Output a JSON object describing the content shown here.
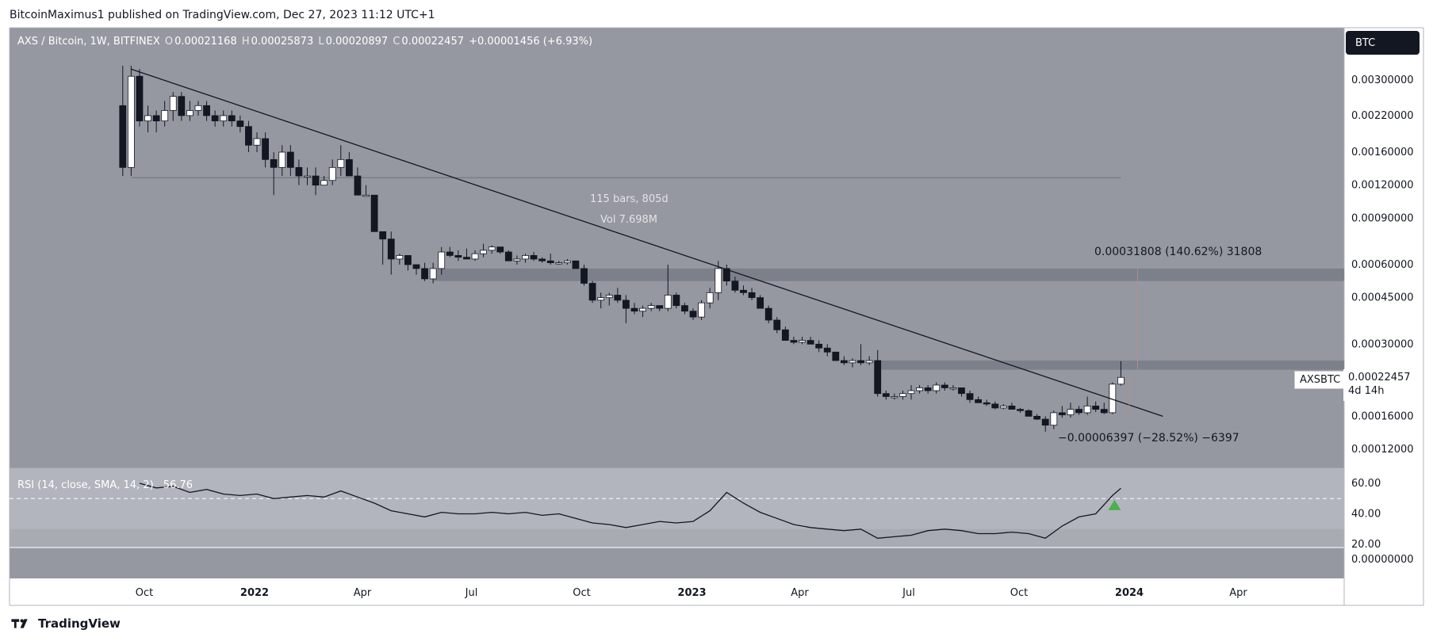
{
  "header": {
    "text": "BitcoinMaximus1 published on TradingView.com, Dec 27, 2023 11:12 UTC+1"
  },
  "footer": {
    "brand": "TradingView"
  },
  "symbol": {
    "name": "AXS / Bitcoin, 1W, BITFINEX",
    "open_label": "O",
    "open": "0.00021168",
    "high_label": "H",
    "high": "0.00025873",
    "low_label": "L",
    "low": "0.00020897",
    "close_label": "C",
    "close": "0.00022457",
    "change": "+0.00001456 (+6.93%)"
  },
  "currency_button": "BTC",
  "price_tag": {
    "symbol": "AXSBTC",
    "price": "0.00022457",
    "countdown": "4d 14h"
  },
  "annotations": {
    "measure_top": "0.00031808 (140.62%) 31808",
    "measure_bottom": "−0.00006397 (−28.52%) −6397",
    "bars": "115 bars, 805d",
    "vol": "Vol 7.698M"
  },
  "rsi": {
    "legend": "RSI (14, close, SMA, 14, 2)",
    "value": "56.76"
  },
  "colors": {
    "price_pane_bg": "#9598a1",
    "rsi_pane_bg": "#a9abb3",
    "rsi_band_bg": "#b2b5be",
    "candle_up": "#ffffff",
    "candle_down": "#131722",
    "trendline": "#131722",
    "zone": "#787b86",
    "arrow": "#4caf50"
  },
  "chart_data": {
    "type": "candlestick",
    "title": "AXS / Bitcoin, 1W, BITFINEX",
    "y_scale": "log",
    "y_ticks": [
      "0.00300000",
      "0.00220000",
      "0.00160000",
      "0.00120000",
      "0.00090000",
      "0.00060000",
      "0.00045000",
      "0.00030000",
      "0.00016000",
      "0.00012000"
    ],
    "y_ticks_values": [
      0.003,
      0.0022,
      0.0016,
      0.0012,
      0.0009,
      0.0006,
      0.00045,
      0.0003,
      0.00016,
      0.00012
    ],
    "x_ticks": [
      "Oct",
      "2022",
      "Apr",
      "Jul",
      "Oct",
      "2023",
      "Apr",
      "Jul",
      "Oct",
      "2024",
      "Apr"
    ],
    "x_ticks_bold": [
      false,
      true,
      false,
      false,
      false,
      true,
      false,
      false,
      false,
      true,
      false
    ],
    "rsi_ticks": [
      "60.00",
      "40.00",
      "20.00"
    ],
    "rsi_ticks_values": [
      60,
      40,
      20
    ],
    "extra_tick": "0.00000000",
    "current_price": 0.00022457,
    "resistance_zones": [
      [
        0.00052,
        0.00058
      ],
      [
        0.00024,
        0.00026
      ]
    ],
    "trendline": [
      [
        "2021-09-20",
        0.0033
      ],
      [
        "2024-01-29",
        0.00016
      ]
    ],
    "candles": [
      [
        "2021-09-13",
        0.0024,
        0.0034,
        0.0013,
        0.0014
      ],
      [
        "2021-09-20",
        0.0014,
        0.0034,
        0.0013,
        0.0031
      ],
      [
        "2021-09-27",
        0.0031,
        0.0033,
        0.002,
        0.0021
      ],
      [
        "2021-10-04",
        0.0021,
        0.0024,
        0.0019,
        0.0022
      ],
      [
        "2021-10-11",
        0.0022,
        0.0023,
        0.0019,
        0.0021
      ],
      [
        "2021-10-18",
        0.0021,
        0.0025,
        0.002,
        0.0023
      ],
      [
        "2021-10-25",
        0.0023,
        0.0027,
        0.0021,
        0.0026
      ],
      [
        "2021-11-01",
        0.0026,
        0.0027,
        0.0021,
        0.0022
      ],
      [
        "2021-11-08",
        0.0022,
        0.0025,
        0.0021,
        0.0023
      ],
      [
        "2021-11-15",
        0.0023,
        0.0025,
        0.0022,
        0.0024
      ],
      [
        "2021-11-22",
        0.0024,
        0.0025,
        0.0021,
        0.0022
      ],
      [
        "2021-11-29",
        0.0022,
        0.0023,
        0.002,
        0.0021
      ],
      [
        "2021-12-06",
        0.0021,
        0.0023,
        0.002,
        0.0022
      ],
      [
        "2021-12-13",
        0.0022,
        0.0023,
        0.002,
        0.0021
      ],
      [
        "2021-12-20",
        0.0021,
        0.0022,
        0.0019,
        0.002
      ],
      [
        "2021-12-27",
        0.002,
        0.0021,
        0.0016,
        0.0017
      ],
      [
        "2022-01-03",
        0.0017,
        0.0019,
        0.0016,
        0.0018
      ],
      [
        "2022-01-10",
        0.0018,
        0.0019,
        0.0014,
        0.0015
      ],
      [
        "2022-01-17",
        0.0015,
        0.0016,
        0.0011,
        0.0014
      ],
      [
        "2022-01-24",
        0.0014,
        0.0017,
        0.0013,
        0.0016
      ],
      [
        "2022-01-31",
        0.0016,
        0.0017,
        0.0013,
        0.0014
      ],
      [
        "2022-02-07",
        0.0014,
        0.0015,
        0.0012,
        0.0013
      ],
      [
        "2022-02-14",
        0.0013,
        0.0014,
        0.0012,
        0.0013
      ],
      [
        "2022-02-21",
        0.0013,
        0.0014,
        0.0011,
        0.0012
      ],
      [
        "2022-02-28",
        0.0012,
        0.0013,
        0.0012,
        0.00125
      ],
      [
        "2022-03-07",
        0.00125,
        0.0015,
        0.0012,
        0.0014
      ],
      [
        "2022-03-14",
        0.0014,
        0.0017,
        0.0013,
        0.0015
      ],
      [
        "2022-03-21",
        0.0015,
        0.0016,
        0.0013,
        0.0013
      ],
      [
        "2022-03-28",
        0.0013,
        0.0014,
        0.0011,
        0.0011
      ],
      [
        "2022-04-04",
        0.0011,
        0.0012,
        0.0011,
        0.0011
      ],
      [
        "2022-04-11",
        0.0011,
        0.0011,
        0.0008,
        0.0008
      ],
      [
        "2022-04-18",
        0.0008,
        0.0008,
        0.0006,
        0.00075
      ],
      [
        "2022-04-25",
        0.00075,
        0.0008,
        0.00055,
        0.00063
      ],
      [
        "2022-05-02",
        0.00063,
        0.00066,
        0.0006,
        0.00065
      ],
      [
        "2022-05-09",
        0.00065,
        0.00065,
        0.00057,
        0.0006
      ],
      [
        "2022-05-16",
        0.0006,
        0.0006,
        0.00055,
        0.00058
      ],
      [
        "2022-05-23",
        0.00058,
        0.00061,
        0.00052,
        0.00053
      ],
      [
        "2022-05-30",
        0.00053,
        0.00061,
        0.00051,
        0.00058
      ],
      [
        "2022-06-06",
        0.00058,
        0.0007,
        0.00055,
        0.00067
      ],
      [
        "2022-06-13",
        0.00067,
        0.0007,
        0.00064,
        0.00065
      ],
      [
        "2022-06-20",
        0.00065,
        0.00068,
        0.00062,
        0.00064
      ],
      [
        "2022-06-27",
        0.00064,
        0.00069,
        0.00063,
        0.00063
      ],
      [
        "2022-07-04",
        0.00063,
        0.00068,
        0.00062,
        0.00066
      ],
      [
        "2022-07-11",
        0.00066,
        0.00072,
        0.00064,
        0.00068
      ],
      [
        "2022-07-18",
        0.00068,
        0.00071,
        0.00066,
        0.0007
      ],
      [
        "2022-07-25",
        0.0007,
        0.0007,
        0.00066,
        0.00067
      ],
      [
        "2022-08-01",
        0.00067,
        0.00068,
        0.00062,
        0.00062
      ],
      [
        "2022-08-08",
        0.00062,
        0.00065,
        0.0006,
        0.00063
      ],
      [
        "2022-08-15",
        0.00063,
        0.00066,
        0.00061,
        0.00065
      ],
      [
        "2022-08-22",
        0.00065,
        0.00067,
        0.00062,
        0.00063
      ],
      [
        "2022-08-29",
        0.00063,
        0.00064,
        0.00061,
        0.00062
      ],
      [
        "2022-09-05",
        0.00062,
        0.00066,
        0.0006,
        0.00061
      ],
      [
        "2022-09-12",
        0.00061,
        0.00062,
        0.0006,
        0.00061
      ],
      [
        "2022-09-19",
        0.00061,
        0.00063,
        0.0006,
        0.00062
      ],
      [
        "2022-09-26",
        0.00062,
        0.00062,
        0.00058,
        0.00058
      ],
      [
        "2022-10-03",
        0.00058,
        0.0006,
        0.0005,
        0.00051
      ],
      [
        "2022-10-10",
        0.00051,
        0.00052,
        0.00043,
        0.00044
      ],
      [
        "2022-10-17",
        0.00044,
        0.00047,
        0.00041,
        0.00045
      ],
      [
        "2022-10-24",
        0.00045,
        0.00047,
        0.00042,
        0.00046
      ],
      [
        "2022-10-31",
        0.00046,
        0.00049,
        0.00043,
        0.00044
      ],
      [
        "2022-11-07",
        0.00044,
        0.00046,
        0.00036,
        0.00041
      ],
      [
        "2022-11-14",
        0.00041,
        0.00043,
        0.00039,
        0.0004
      ],
      [
        "2022-11-21",
        0.0004,
        0.00042,
        0.00038,
        0.00041
      ],
      [
        "2022-11-28",
        0.00041,
        0.00043,
        0.0004,
        0.00042
      ],
      [
        "2022-12-05",
        0.00042,
        0.00042,
        0.0004,
        0.00041
      ],
      [
        "2022-12-12",
        0.00041,
        0.0006,
        0.0004,
        0.00046
      ],
      [
        "2022-12-19",
        0.00046,
        0.00047,
        0.00041,
        0.00042
      ],
      [
        "2022-12-26",
        0.00042,
        0.00043,
        0.00039,
        0.0004
      ],
      [
        "2023-01-02",
        0.0004,
        0.00041,
        0.00037,
        0.00038
      ],
      [
        "2023-01-09",
        0.00038,
        0.00044,
        0.00037,
        0.00043
      ],
      [
        "2023-01-16",
        0.00043,
        0.00049,
        0.00041,
        0.00047
      ],
      [
        "2023-01-23",
        0.00047,
        0.00062,
        0.00044,
        0.00058
      ],
      [
        "2023-01-30",
        0.00058,
        0.0006,
        0.0005,
        0.00052
      ],
      [
        "2023-02-06",
        0.00052,
        0.00054,
        0.00047,
        0.00048
      ],
      [
        "2023-02-13",
        0.00048,
        0.0005,
        0.00046,
        0.00047
      ],
      [
        "2023-02-20",
        0.00047,
        0.00049,
        0.00044,
        0.00045
      ],
      [
        "2023-02-27",
        0.00045,
        0.00046,
        0.00041,
        0.00041
      ],
      [
        "2023-03-06",
        0.00041,
        0.00042,
        0.00036,
        0.00037
      ],
      [
        "2023-03-13",
        0.00037,
        0.00038,
        0.00033,
        0.00034
      ],
      [
        "2023-03-20",
        0.00034,
        0.00035,
        0.00031,
        0.00031
      ],
      [
        "2023-03-27",
        0.00031,
        0.00032,
        0.0003,
        0.000305
      ],
      [
        "2023-04-03",
        0.000305,
        0.00032,
        0.0003,
        0.00031
      ],
      [
        "2023-04-10",
        0.00031,
        0.00032,
        0.0003,
        0.0003
      ],
      [
        "2023-04-17",
        0.0003,
        0.00031,
        0.00028,
        0.00029
      ],
      [
        "2023-04-24",
        0.00029,
        0.0003,
        0.00027,
        0.00028
      ],
      [
        "2023-05-01",
        0.00028,
        0.00028,
        0.00026,
        0.00026
      ],
      [
        "2023-05-08",
        0.00026,
        0.00027,
        0.00025,
        0.000255
      ],
      [
        "2023-05-15",
        0.000255,
        0.000265,
        0.000245,
        0.00026
      ],
      [
        "2023-05-22",
        0.00026,
        0.0003,
        0.00025,
        0.000255
      ],
      [
        "2023-05-29",
        0.000255,
        0.00027,
        0.00025,
        0.00026
      ],
      [
        "2023-06-05",
        0.00026,
        0.000285,
        0.00019,
        0.000195
      ],
      [
        "2023-06-12",
        0.000195,
        0.0002,
        0.000185,
        0.00019
      ],
      [
        "2023-06-19",
        0.00019,
        0.000195,
        0.000185,
        0.00019
      ],
      [
        "2023-06-26",
        0.00019,
        0.0002,
        0.000185,
        0.000195
      ],
      [
        "2023-07-03",
        0.000195,
        0.00021,
        0.000185,
        0.0002
      ],
      [
        "2023-07-10",
        0.0002,
        0.00021,
        0.000195,
        0.000205
      ],
      [
        "2023-07-17",
        0.000205,
        0.00021,
        0.000195,
        0.0002
      ],
      [
        "2023-07-24",
        0.0002,
        0.000215,
        0.000195,
        0.00021
      ],
      [
        "2023-07-31",
        0.00021,
        0.000215,
        0.0002,
        0.000205
      ],
      [
        "2023-08-07",
        0.000205,
        0.00021,
        0.0002,
        0.000205
      ],
      [
        "2023-08-14",
        0.000205,
        0.000205,
        0.00019,
        0.000195
      ],
      [
        "2023-08-21",
        0.000195,
        0.0002,
        0.00018,
        0.000185
      ],
      [
        "2023-08-28",
        0.000185,
        0.00019,
        0.00018,
        0.00018
      ],
      [
        "2023-09-04",
        0.00018,
        0.000185,
        0.000175,
        0.000178
      ],
      [
        "2023-09-11",
        0.000178,
        0.000182,
        0.00017,
        0.000172
      ],
      [
        "2023-09-18",
        0.000172,
        0.000178,
        0.00017,
        0.000175
      ],
      [
        "2023-09-25",
        0.000175,
        0.00018,
        0.00017,
        0.00017
      ],
      [
        "2023-10-02",
        0.00017,
        0.000172,
        0.000165,
        0.000168
      ],
      [
        "2023-10-09",
        0.000168,
        0.00017,
        0.00016,
        0.00016
      ],
      [
        "2023-10-16",
        0.00016,
        0.000163,
        0.000155,
        0.000156
      ],
      [
        "2023-10-23",
        0.000156,
        0.00016,
        0.00014,
        0.000148
      ],
      [
        "2023-10-30",
        0.000148,
        0.000168,
        0.000143,
        0.000165
      ],
      [
        "2023-11-06",
        0.000165,
        0.000175,
        0.000158,
        0.000162
      ],
      [
        "2023-11-13",
        0.000162,
        0.00018,
        0.000158,
        0.00017
      ],
      [
        "2023-11-20",
        0.00017,
        0.000175,
        0.000162,
        0.000165
      ],
      [
        "2023-11-27",
        0.000165,
        0.00019,
        0.000162,
        0.000175
      ],
      [
        "2023-12-04",
        0.000175,
        0.000182,
        0.000166,
        0.00017
      ],
      [
        "2023-12-11",
        0.00017,
        0.00018,
        0.000163,
        0.000165
      ],
      [
        "2023-12-18",
        0.000165,
        0.000215,
        0.000163,
        0.00021168
      ],
      [
        "2023-12-25",
        0.00021168,
        0.00025873,
        0.00020897,
        0.00022457
      ]
    ],
    "rsi_series": [
      [
        "2021-09-27",
        60
      ],
      [
        "2021-10-11",
        57
      ],
      [
        "2021-10-25",
        58
      ],
      [
        "2021-11-08",
        54
      ],
      [
        "2021-11-22",
        56
      ],
      [
        "2021-12-06",
        53
      ],
      [
        "2021-12-20",
        52
      ],
      [
        "2022-01-03",
        53
      ],
      [
        "2022-01-17",
        50
      ],
      [
        "2022-01-31",
        51
      ],
      [
        "2022-02-14",
        52
      ],
      [
        "2022-02-28",
        51
      ],
      [
        "2022-03-14",
        55
      ],
      [
        "2022-03-28",
        51
      ],
      [
        "2022-04-11",
        47
      ],
      [
        "2022-04-25",
        42
      ],
      [
        "2022-05-09",
        40
      ],
      [
        "2022-05-23",
        38
      ],
      [
        "2022-06-06",
        41
      ],
      [
        "2022-06-20",
        40
      ],
      [
        "2022-07-04",
        40
      ],
      [
        "2022-07-18",
        41
      ],
      [
        "2022-08-01",
        40
      ],
      [
        "2022-08-15",
        41
      ],
      [
        "2022-08-29",
        39
      ],
      [
        "2022-09-12",
        40
      ],
      [
        "2022-09-26",
        37
      ],
      [
        "2022-10-10",
        34
      ],
      [
        "2022-10-24",
        33
      ],
      [
        "2022-11-07",
        31
      ],
      [
        "2022-11-21",
        33
      ],
      [
        "2022-12-05",
        35
      ],
      [
        "2022-12-19",
        34
      ],
      [
        "2023-01-02",
        35
      ],
      [
        "2023-01-16",
        42
      ],
      [
        "2023-01-30",
        54
      ],
      [
        "2023-02-13",
        47
      ],
      [
        "2023-02-27",
        41
      ],
      [
        "2023-03-13",
        37
      ],
      [
        "2023-03-27",
        33
      ],
      [
        "2023-04-10",
        31
      ],
      [
        "2023-04-24",
        30
      ],
      [
        "2023-05-08",
        29
      ],
      [
        "2023-05-22",
        30
      ],
      [
        "2023-06-05",
        24
      ],
      [
        "2023-06-19",
        25
      ],
      [
        "2023-07-03",
        26
      ],
      [
        "2023-07-17",
        29
      ],
      [
        "2023-07-31",
        30
      ],
      [
        "2023-08-14",
        29
      ],
      [
        "2023-08-28",
        27
      ],
      [
        "2023-09-11",
        27
      ],
      [
        "2023-09-25",
        28
      ],
      [
        "2023-10-09",
        27
      ],
      [
        "2023-10-23",
        24
      ],
      [
        "2023-11-06",
        32
      ],
      [
        "2023-11-20",
        38
      ],
      [
        "2023-12-04",
        40
      ],
      [
        "2023-12-18",
        52
      ],
      [
        "2023-12-25",
        56.76
      ]
    ],
    "rsi_levels": [
      70,
      50,
      30
    ],
    "signal": {
      "type": "arrow-up",
      "date": "2023-12-25",
      "rsi": 45
    },
    "x_ticks_dates": [
      "2021-10-01",
      "2022-01-01",
      "2022-04-01",
      "2022-07-01",
      "2022-10-01",
      "2023-01-01",
      "2023-04-01",
      "2023-07-01",
      "2023-10-01",
      "2024-01-01",
      "2024-04-01"
    ]
  }
}
